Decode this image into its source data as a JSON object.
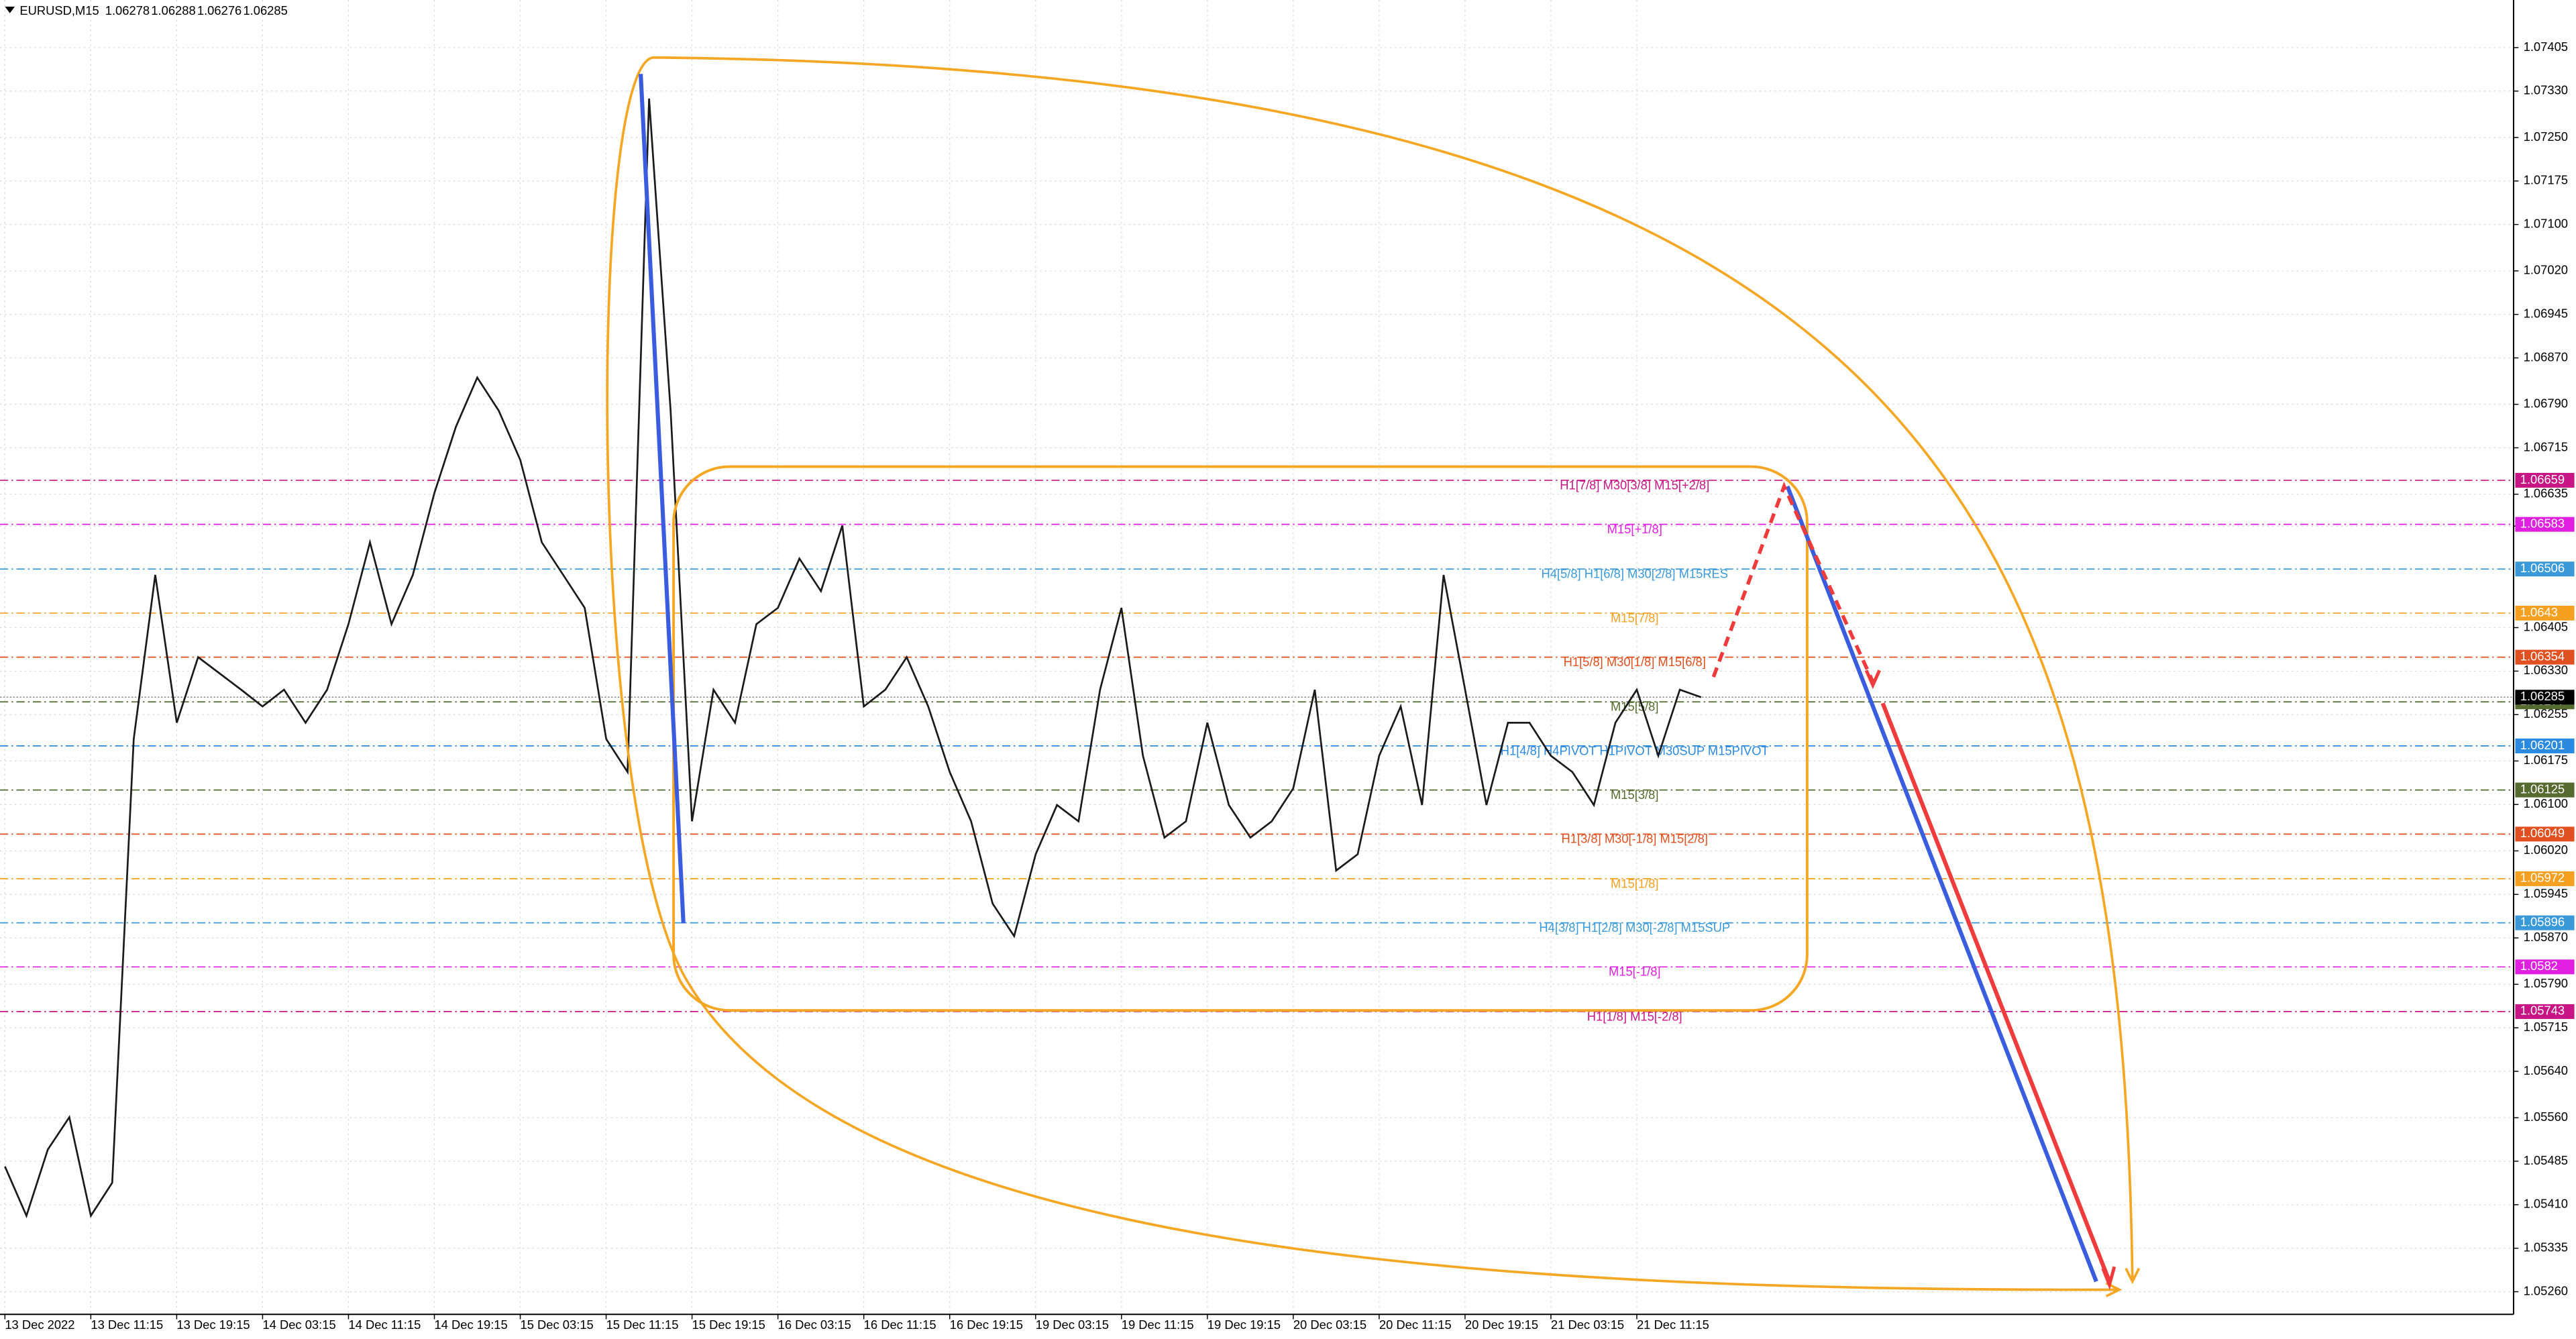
{
  "chart_data": {
    "type": "line",
    "title": "EURUSD,M15",
    "last_bar": {
      "open": 1.06278,
      "high": 1.06288,
      "low": 1.06276,
      "close": 1.06285
    },
    "color": "#1a1a1a",
    "grid": true,
    "ylim": [
      1.05221,
      1.07487
    ],
    "yticks": [
      1.07405,
      {
        "value": 1.0733,
        "label": "1.07330"
      },
      {
        "value": 1.0725,
        "label": "1.07250"
      },
      1.07175,
      {
        "value": 1.071,
        "label": "1.07100"
      },
      {
        "value": 1.0702,
        "label": "1.07020"
      },
      1.06945,
      {
        "value": 1.0687,
        "label": "1.06870"
      },
      {
        "value": 1.0679,
        "label": "1.06790"
      },
      1.06715,
      1.06635,
      {
        "value": 1.0658,
        "label": "1.06580"
      },
      1.06405,
      {
        "value": 1.0633,
        "label": "1.06330"
      },
      1.06255,
      1.06175,
      {
        "value": 1.061,
        "label": "1.06100"
      },
      {
        "value": 1.0602,
        "label": "1.06020"
      },
      1.05945,
      {
        "value": 1.0587,
        "label": "1.05870"
      },
      {
        "value": 1.0579,
        "label": "1.05790"
      },
      1.05715,
      {
        "value": 1.0564,
        "label": "1.05640"
      },
      {
        "value": 1.0556,
        "label": "1.05560"
      },
      1.05485,
      {
        "value": 1.0541,
        "label": "1.05410"
      },
      1.05335,
      {
        "value": 1.0526,
        "label": "1.05260"
      }
    ],
    "categories": [
      "13 Dec 2022",
      null,
      null,
      null,
      "13 Dec 11:15",
      null,
      null,
      null,
      "13 Dec 19:15",
      null,
      null,
      null,
      "14 Dec 03:15",
      null,
      null,
      null,
      "14 Dec 11:15",
      null,
      null,
      null,
      "14 Dec 19:15",
      null,
      null,
      null,
      "15 Dec 03:15",
      null,
      null,
      null,
      "15 Dec 11:15",
      null,
      null,
      null,
      "15 Dec 19:15",
      null,
      null,
      null,
      "16 Dec 03:15",
      null,
      null,
      null,
      "16 Dec 11:15",
      null,
      null,
      null,
      "16 Dec 19:15",
      null,
      null,
      null,
      "19 Dec 03:15",
      null,
      null,
      null,
      "19 Dec 11:15",
      null,
      null,
      null,
      "19 Dec 19:15",
      null,
      null,
      null,
      "20 Dec 03:15",
      null,
      null,
      null,
      "20 Dec 11:15",
      null,
      null,
      null,
      "20 Dec 19:15",
      null,
      null,
      null,
      "21 Dec 03:15",
      null,
      null,
      null,
      "21 Dec 11:15",
      null,
      null,
      null
    ],
    "values": [
      1.05476,
      1.05391,
      1.05505,
      1.05561,
      1.05391,
      1.05448,
      1.06213,
      1.06496,
      1.06241,
      1.06354,
      1.06326,
      1.06298,
      1.06269,
      1.06298,
      1.06241,
      1.06298,
      1.06411,
      1.06552,
      1.06411,
      1.06496,
      1.06637,
      1.06751,
      1.06836,
      1.06779,
      1.06694,
      1.06552,
      1.06496,
      1.06439,
      1.06213,
      1.06156,
      1.07317,
      1.06779,
      1.06071,
      1.06298,
      1.06241,
      1.06411,
      1.06439,
      1.06524,
      1.06468,
      1.06581,
      1.06269,
      1.06298,
      1.06354,
      1.06269,
      1.06156,
      1.06071,
      1.05929,
      1.05873,
      1.06014,
      1.06099,
      1.06071,
      1.06298,
      1.06439,
      1.06184,
      1.06043,
      1.06071,
      1.06241,
      1.06099,
      1.06043,
      1.06071,
      1.06128,
      1.06298,
      1.05986,
      1.06014,
      1.06184,
      1.06269,
      1.06099,
      1.06496,
      1.06298,
      1.06099,
      1.06241,
      1.06241,
      1.06184,
      1.06156,
      1.06099,
      1.06241,
      1.06298,
      1.06184,
      1.06298,
      1.06285
    ],
    "levels": [
      {
        "value": 1.06659,
        "label": "H1[7/8] M30[3/8] M15[+2/8]",
        "color": "#c71585"
      },
      {
        "value": 1.06583,
        "label": "M15[+1/8]",
        "color": "#e020e0"
      },
      {
        "value": 1.06506,
        "label": "H4[5/8] H1[6/8] M30[2/8] M15RES",
        "color": "#3a9ad9"
      },
      {
        "value": 1.0643,
        "label": "M15[7/8]",
        "color": "#f5a020"
      },
      {
        "value": 1.06354,
        "label": "H1[5/8] M30[1/8] M15[6/8]",
        "color": "#e05020"
      },
      {
        "value": 1.06277,
        "label": "M15[5/8]",
        "color": "#556b2f"
      },
      {
        "value": 1.06201,
        "label": "H1[4/8] H4PIVOT H1PIVOT M30SUP M15PIVOT",
        "color": "#2a8ae0"
      },
      {
        "value": 1.06125,
        "label": "M15[3/8]",
        "color": "#556b2f"
      },
      {
        "value": 1.06049,
        "label": "H1[3/8] M30[-1/8] M15[2/8]",
        "color": "#e05020"
      },
      {
        "value": 1.05972,
        "label": "M15[1/8]",
        "color": "#f5a020"
      },
      {
        "value": 1.05896,
        "label": "H4[3/8] H1[2/8] M30[-2/8] M15SUP",
        "color": "#3a9ad9"
      },
      {
        "value": 1.0582,
        "label": "M15[-1/8]",
        "color": "#e020e0"
      },
      {
        "value": 1.05743,
        "label": "H1[1/8] M15[-2/8]",
        "color": "#c71585"
      }
    ]
  }
}
